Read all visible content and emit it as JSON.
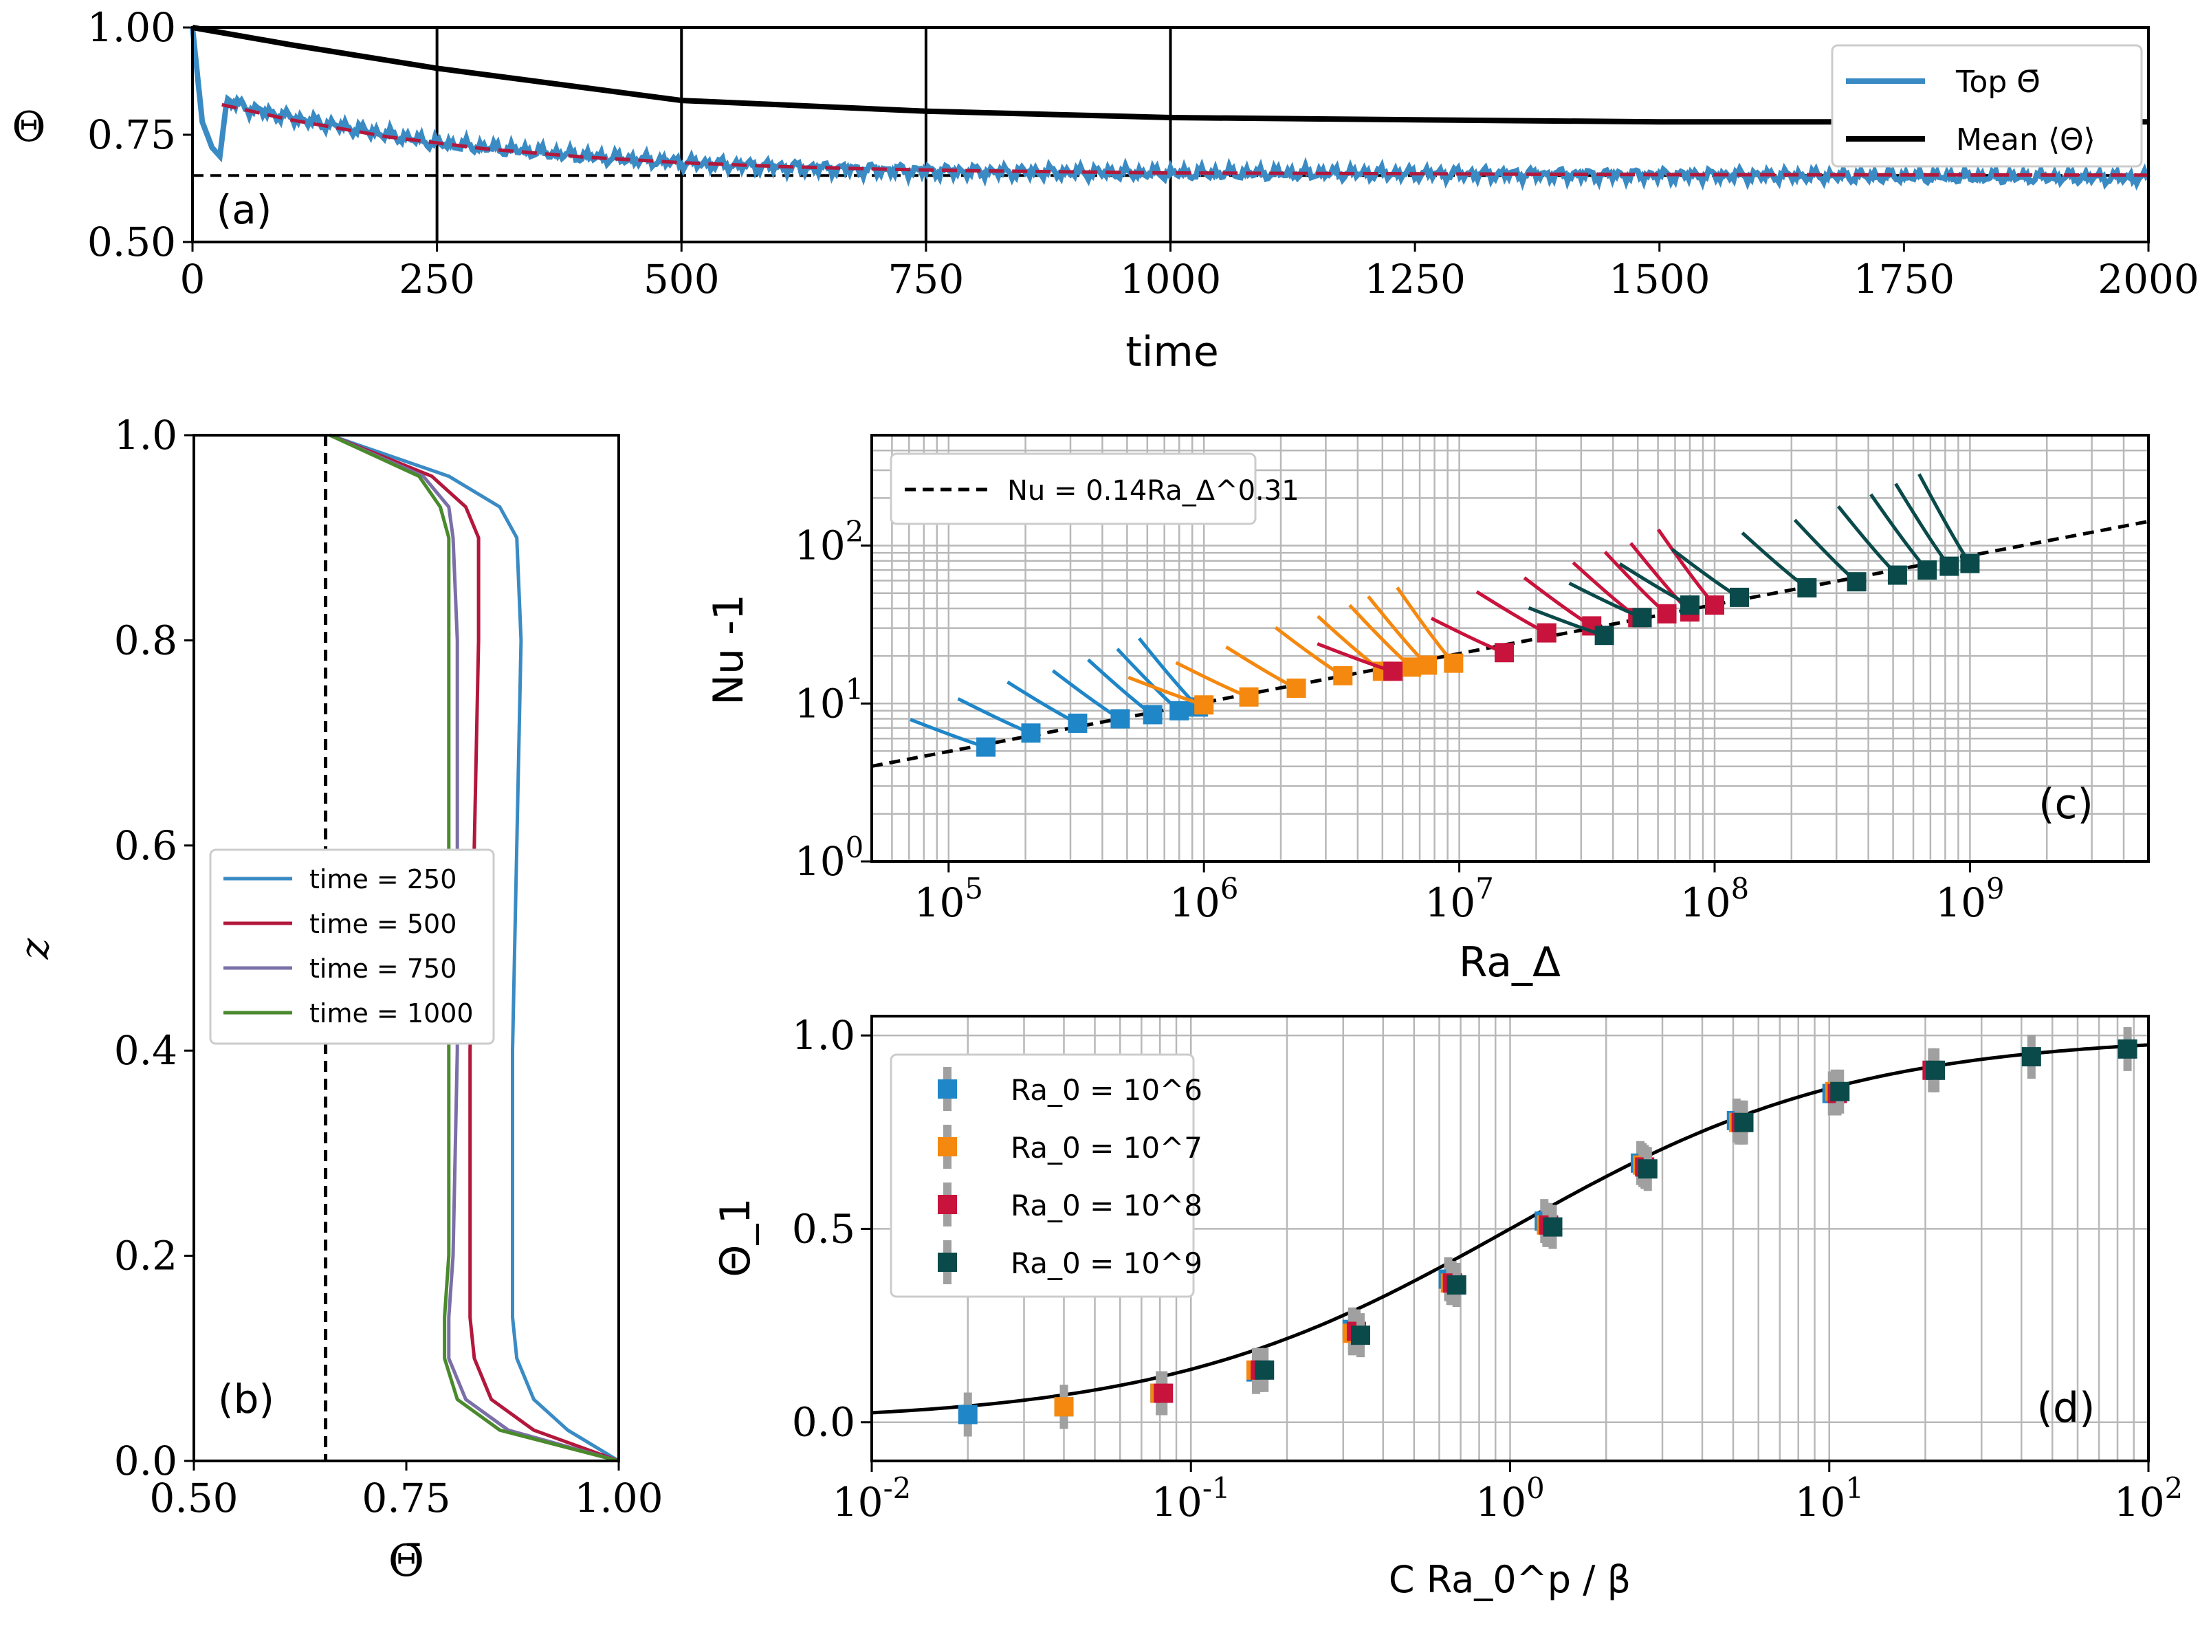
{
  "chart_data": [
    {
      "panel": "a",
      "type": "line",
      "panel_label": "(a)",
      "xlabel": "time",
      "ylabel": "Θ",
      "xlim": [
        0,
        2000
      ],
      "ylim": [
        0.5,
        1.0
      ],
      "x_ticks": [
        0,
        250,
        500,
        750,
        1000,
        1250,
        1500,
        1750,
        2000
      ],
      "y_ticks": [
        0.5,
        0.75,
        1.0
      ],
      "x_tick_labels": [
        "0",
        "250",
        "500",
        "750",
        "1000",
        "1250",
        "1500",
        "1750",
        "2000"
      ],
      "y_tick_labels": [
        "0.50",
        "0.75",
        "1.00"
      ],
      "vertical_lines_x": [
        250,
        500,
        750,
        1000
      ],
      "hline_y": 0.655,
      "legend": [
        {
          "label": "Top Θ̄",
          "color": "#3a8bc4"
        },
        {
          "label": "Mean ⟨Θ⟩",
          "color": "#000000"
        }
      ],
      "series": [
        {
          "name": "Top Θ̄",
          "color": "#3a8bc4",
          "x": [
            0,
            10,
            20,
            28,
            35,
            60,
            100,
            150,
            200,
            250,
            300,
            400,
            500,
            600,
            700,
            800,
            900,
            1000,
            1200,
            1400,
            1600,
            1800,
            2000
          ],
          "y": [
            1.0,
            0.78,
            0.72,
            0.7,
            0.83,
            0.81,
            0.79,
            0.77,
            0.75,
            0.73,
            0.72,
            0.7,
            0.685,
            0.675,
            0.668,
            0.664,
            0.662,
            0.66,
            0.66,
            0.657,
            0.655,
            0.652,
            0.65
          ]
        },
        {
          "name": "Mean ⟨Θ⟩",
          "color": "#000000",
          "x": [
            0,
            100,
            250,
            500,
            750,
            1000,
            1250,
            1500,
            1750,
            2000
          ],
          "y": [
            1.0,
            0.96,
            0.905,
            0.83,
            0.805,
            0.79,
            0.785,
            0.78,
            0.78,
            0.78
          ]
        },
        {
          "name": "",
          "color": "#b2183c",
          "dashed": true,
          "x": [
            30,
            100,
            200,
            300,
            400,
            500,
            600,
            700,
            800,
            1000,
            1500,
            2000
          ],
          "y": [
            0.82,
            0.785,
            0.745,
            0.717,
            0.698,
            0.685,
            0.676,
            0.67,
            0.666,
            0.661,
            0.657,
            0.656
          ]
        }
      ]
    },
    {
      "panel": "b",
      "type": "line",
      "panel_label": "(b)",
      "xlabel": "Θ̄",
      "ylabel": "z",
      "xlim": [
        0.5,
        1.0
      ],
      "ylim": [
        0.0,
        1.0
      ],
      "x_ticks": [
        0.5,
        0.75,
        1.0
      ],
      "y_ticks": [
        0.0,
        0.2,
        0.4,
        0.6,
        0.8,
        1.0
      ],
      "x_tick_labels": [
        "0.50",
        "0.75",
        "1.00"
      ],
      "y_tick_labels": [
        "0.0",
        "0.2",
        "0.4",
        "0.6",
        "0.8",
        "1.0"
      ],
      "vline_x": 0.655,
      "legend_position": "center-left",
      "series": [
        {
          "name": "time = 250",
          "color": "#3a8bc4",
          "z": [
            0.0,
            0.03,
            0.06,
            0.1,
            0.14,
            0.2,
            0.4,
            0.6,
            0.8,
            0.9,
            0.93,
            0.96,
            1.0
          ],
          "theta": [
            1.0,
            0.94,
            0.9,
            0.88,
            0.875,
            0.875,
            0.875,
            0.88,
            0.885,
            0.88,
            0.86,
            0.8,
            0.66
          ]
        },
        {
          "name": "time = 500",
          "color": "#b2183c",
          "z": [
            0.0,
            0.03,
            0.06,
            0.1,
            0.14,
            0.2,
            0.4,
            0.6,
            0.8,
            0.9,
            0.93,
            0.96,
            1.0
          ],
          "theta": [
            1.0,
            0.9,
            0.85,
            0.83,
            0.825,
            0.825,
            0.825,
            0.83,
            0.835,
            0.835,
            0.82,
            0.78,
            0.66
          ]
        },
        {
          "name": "time = 750",
          "color": "#7b6fa8",
          "z": [
            0.0,
            0.03,
            0.06,
            0.1,
            0.14,
            0.2,
            0.4,
            0.6,
            0.8,
            0.9,
            0.93,
            0.96,
            1.0
          ],
          "theta": [
            1.0,
            0.87,
            0.82,
            0.8,
            0.8,
            0.805,
            0.81,
            0.81,
            0.81,
            0.805,
            0.8,
            0.77,
            0.66
          ]
        },
        {
          "name": "time = 1000",
          "color": "#4a8a2c",
          "z": [
            0.0,
            0.03,
            0.06,
            0.1,
            0.14,
            0.2,
            0.4,
            0.6,
            0.8,
            0.9,
            0.93,
            0.96,
            1.0
          ],
          "theta": [
            1.0,
            0.86,
            0.81,
            0.795,
            0.795,
            0.8,
            0.8,
            0.8,
            0.8,
            0.8,
            0.79,
            0.765,
            0.66
          ]
        }
      ]
    },
    {
      "panel": "c",
      "type": "scatter",
      "panel_label": "(c)",
      "xlabel": "Ra_Δ",
      "ylabel": "Nu -1",
      "xscale": "log",
      "yscale": "log",
      "xlim": [
        50000,
        5000000000
      ],
      "ylim": [
        1,
        500
      ],
      "x_tick_labels": [
        "10^5",
        "10^6",
        "10^7",
        "10^8",
        "10^9"
      ],
      "y_tick_labels": [
        "10^0",
        "10^1",
        "10^2"
      ],
      "fit_line": {
        "label": "Nu = 0.14Ra_Δ^0.31",
        "coef": 0.14,
        "exp": 0.31,
        "color": "#000000",
        "dashed": true
      },
      "series": [
        {
          "name": "",
          "color": "#1f86c8",
          "points": [
            [
              140000,
              5.3
            ],
            [
              210000,
              6.5
            ],
            [
              320000,
              7.5
            ],
            [
              470000,
              8.0
            ],
            [
              630000,
              8.5
            ],
            [
              800000,
              9.0
            ],
            [
              950000,
              9.5
            ]
          ]
        },
        {
          "name": "",
          "color": "#f5880f",
          "points": [
            [
              1000000,
              9.8
            ],
            [
              1500000,
              11
            ],
            [
              2300000,
              12.5
            ],
            [
              3500000,
              15
            ],
            [
              5000000,
              16
            ],
            [
              6500000,
              17
            ],
            [
              7500000,
              17.5
            ],
            [
              9500000,
              18
            ]
          ]
        },
        {
          "name": "",
          "color": "#c8133c",
          "points": [
            [
              5500000,
              16
            ],
            [
              15000000,
              21
            ],
            [
              22000000,
              28
            ],
            [
              33000000,
              31
            ],
            [
              50000000,
              35
            ],
            [
              65000000,
              37
            ],
            [
              80000000,
              38
            ],
            [
              100000000,
              42
            ]
          ]
        },
        {
          "name": "",
          "color": "#0b4a4a",
          "points": [
            [
              37000000,
              27
            ],
            [
              52000000,
              35
            ],
            [
              80000000,
              42
            ],
            [
              125000000,
              47
            ],
            [
              230000000,
              54
            ],
            [
              360000000,
              59
            ],
            [
              520000000,
              65
            ],
            [
              680000000,
              70
            ],
            [
              830000000,
              74
            ],
            [
              1000000000,
              77
            ]
          ]
        }
      ]
    },
    {
      "panel": "d",
      "type": "scatter",
      "panel_label": "(d)",
      "xlabel": "C Ra_0^p / β",
      "ylabel": "Θ_1",
      "xscale": "log",
      "xlim": [
        0.01,
        100
      ],
      "ylim": [
        -0.1,
        1.05
      ],
      "x_tick_labels": [
        "10^-2",
        "10^-1",
        "10^0",
        "10^1",
        "10^2"
      ],
      "y_ticks": [
        0.0,
        0.5,
        1.0
      ],
      "y_tick_labels": [
        "0.0",
        "0.5",
        "1.0"
      ],
      "legend": [
        {
          "label": "Ra_0 = 10^6",
          "color": "#1f86c8"
        },
        {
          "label": "Ra_0 = 10^7",
          "color": "#f5880f"
        },
        {
          "label": "Ra_0 = 10^8",
          "color": "#c8133c"
        },
        {
          "label": "Ra_0 = 10^9",
          "color": "#0b4a4a"
        }
      ],
      "fit_curve_color": "#000000",
      "series": [
        {
          "name": "Ra_0 = 10^6",
          "color": "#1f86c8",
          "x": [
            0.02,
            0.04,
            0.08,
            0.16,
            0.32,
            0.64,
            1.28,
            2.56,
            5.12,
            10.2
          ],
          "y": [
            0.02,
            0.04,
            0.075,
            0.13,
            0.24,
            0.37,
            0.52,
            0.67,
            0.78,
            0.85
          ]
        },
        {
          "name": "Ra_0 = 10^7",
          "color": "#f5880f",
          "x": [
            0.04,
            0.08,
            0.16,
            0.32,
            0.65,
            1.3,
            2.6,
            5.2,
            10.4
          ],
          "y": [
            0.04,
            0.075,
            0.135,
            0.23,
            0.36,
            0.51,
            0.665,
            0.775,
            0.855
          ]
        },
        {
          "name": "Ra_0 = 10^8",
          "color": "#c8133c",
          "x": [
            0.082,
            0.165,
            0.33,
            0.66,
            1.32,
            2.64,
            5.3,
            10.6,
            21
          ],
          "y": [
            0.075,
            0.135,
            0.235,
            0.36,
            0.51,
            0.66,
            0.775,
            0.85,
            0.91
          ]
        },
        {
          "name": "Ra_0 = 10^9",
          "color": "#0b4a4a",
          "x": [
            0.17,
            0.34,
            0.68,
            1.36,
            2.7,
            5.4,
            10.8,
            21.5,
            43,
            86
          ],
          "y": [
            0.135,
            0.225,
            0.355,
            0.505,
            0.655,
            0.775,
            0.855,
            0.91,
            0.945,
            0.965
          ]
        }
      ]
    }
  ]
}
